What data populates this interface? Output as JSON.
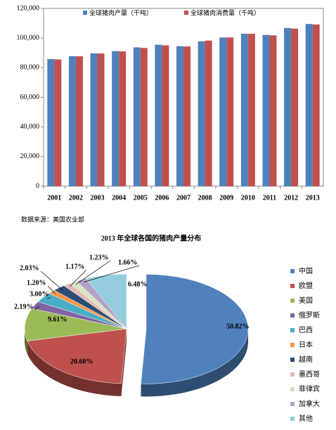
{
  "chart_data": [
    {
      "type": "bar",
      "categories": [
        "2001",
        "2002",
        "2003",
        "2004",
        "2005",
        "2006",
        "2007",
        "2008",
        "2009",
        "2010",
        "2011",
        "2012",
        "2013"
      ],
      "series": [
        {
          "name": "全球猪肉产量（千吨）",
          "color": "#4f81bd",
          "values": [
            85800,
            87800,
            89700,
            91200,
            93700,
            95500,
            94500,
            97800,
            100400,
            102900,
            102100,
            106800,
            109500
          ]
        },
        {
          "name": "全球猪肉消费量（千吨）",
          "color": "#c0504d",
          "values": [
            85600,
            87700,
            89600,
            91000,
            93300,
            95100,
            94300,
            98300,
            100400,
            102900,
            101800,
            106400,
            109200
          ]
        }
      ],
      "ylim": [
        0,
        120000
      ],
      "yticks": [
        0,
        {
          "value": 20000,
          "label": "20,000"
        },
        {
          "value": 40000,
          "label": "40,000"
        },
        {
          "value": 60000,
          "label": "60,000"
        },
        {
          "value": 80000,
          "label": "80,000"
        },
        {
          "value": 100000,
          "label": "100,000"
        },
        {
          "value": 120000,
          "label": "120,000"
        }
      ]
    },
    {
      "type": "pie",
      "title": "2013 年全球各国的猪肉产量分布",
      "categories": [
        "中国",
        "欧盟",
        "美国",
        "俄罗斯",
        "巴西",
        "日本",
        "越南",
        "墨西哥",
        "菲律宾",
        "加拿大",
        "其他"
      ],
      "values": [
        50.82,
        20.6,
        9.61,
        2.19,
        3.0,
        1.2,
        2.03,
        1.17,
        1.23,
        1.66,
        6.48
      ],
      "value_labels": [
        "50.82%",
        "20.60%",
        "9.61%",
        "2.19%",
        "3.00%",
        "1.20%",
        "2.03%",
        "1.17%",
        "1.23%",
        "1.66%",
        "6.48%"
      ],
      "colors": [
        "#4f81bd",
        "#c0504d",
        "#9bbb59",
        "#8064a2",
        "#4bacc6",
        "#f79646",
        "#2c4d75",
        "#e6b9b8",
        "#d7e4bd",
        "#b3a2c7",
        "#93cddd"
      ]
    }
  ],
  "source": "数据来源：美国农业部"
}
